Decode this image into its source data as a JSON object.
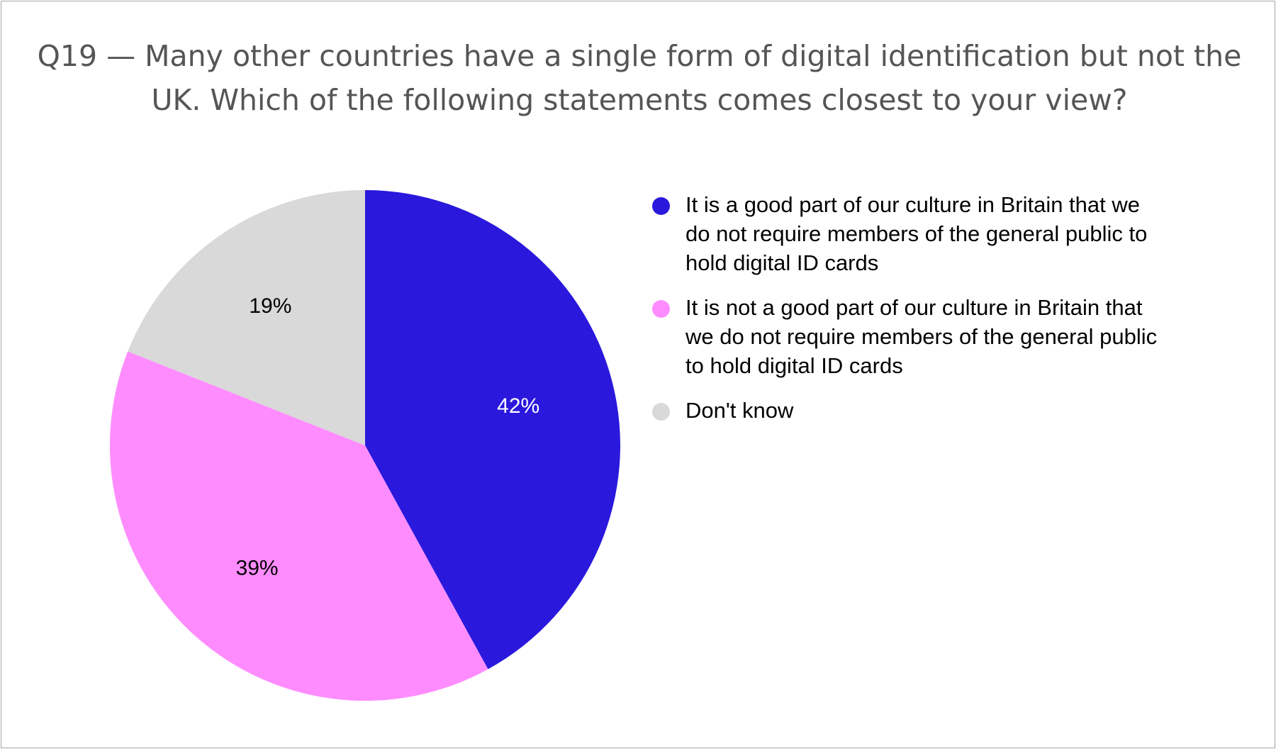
{
  "chart_data": {
    "type": "pie",
    "title": "Q19 — Many other countries have a single form of digital identification but not the UK. Which of the following statements comes closest to your view?",
    "slices": [
      {
        "label": "It is a good part of our culture in Britain that we do not require members of the general public to hold digital ID cards",
        "value": 42,
        "display": "42%",
        "color": "#2a18dc",
        "label_color": "#ffffff"
      },
      {
        "label": "It is not a good part of our culture in Britain that we do not require members of the general public to hold digital ID cards",
        "value": 39,
        "display": "39%",
        "color": "#ff8cff",
        "label_color": "#000000"
      },
      {
        "label": "Don't know",
        "value": 19,
        "display": "19%",
        "color": "#d9d9d9",
        "label_color": "#000000"
      }
    ],
    "start_angle": "12 o'clock",
    "direction": "clockwise",
    "legend_position": "right"
  }
}
